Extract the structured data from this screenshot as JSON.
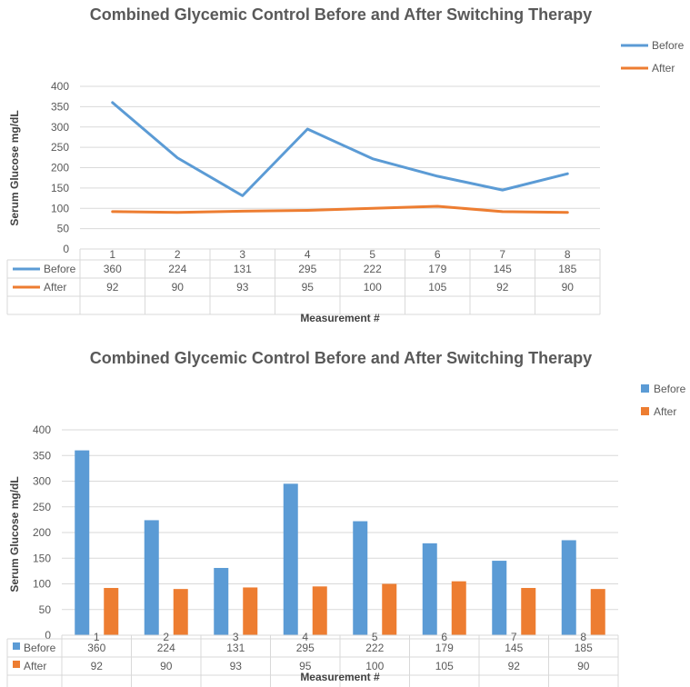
{
  "chart_data": [
    {
      "type": "line",
      "title": "Combined Glycemic Control Before and After Switching Therapy",
      "xlabel": "Measurement #",
      "ylabel": "Serum Glucose mg/dL",
      "ylim": [
        0,
        400
      ],
      "yticks": [
        "0",
        "50",
        "100",
        "150",
        "200",
        "250",
        "300",
        "350",
        "400"
      ],
      "categories": [
        "1",
        "2",
        "3",
        "4",
        "5",
        "6",
        "7",
        "8"
      ],
      "series": [
        {
          "name": "Before",
          "color": "#5B9BD5",
          "values": [
            360,
            224,
            131,
            295,
            222,
            179,
            145,
            185
          ]
        },
        {
          "name": "After",
          "color": "#ED7D31",
          "values": [
            92,
            90,
            93,
            95,
            100,
            105,
            92,
            90
          ]
        }
      ],
      "legend": "top-right",
      "grid": true
    },
    {
      "type": "bar",
      "title": "Combined Glycemic Control Before and After Switching Therapy",
      "xlabel": "Measurement #",
      "ylabel": "Serum Glucose mg/dL",
      "ylim": [
        0,
        400
      ],
      "yticks": [
        "0",
        "50",
        "100",
        "150",
        "200",
        "250",
        "300",
        "350",
        "400"
      ],
      "categories": [
        "1",
        "2",
        "3",
        "4",
        "5",
        "6",
        "7",
        "8"
      ],
      "series": [
        {
          "name": "Before",
          "color": "#5B9BD5",
          "values": [
            360,
            224,
            131,
            295,
            222,
            179,
            145,
            185
          ]
        },
        {
          "name": "After",
          "color": "#ED7D31",
          "values": [
            92,
            90,
            93,
            95,
            100,
            105,
            92,
            90
          ]
        }
      ],
      "legend": "top-right",
      "grid": true
    }
  ]
}
